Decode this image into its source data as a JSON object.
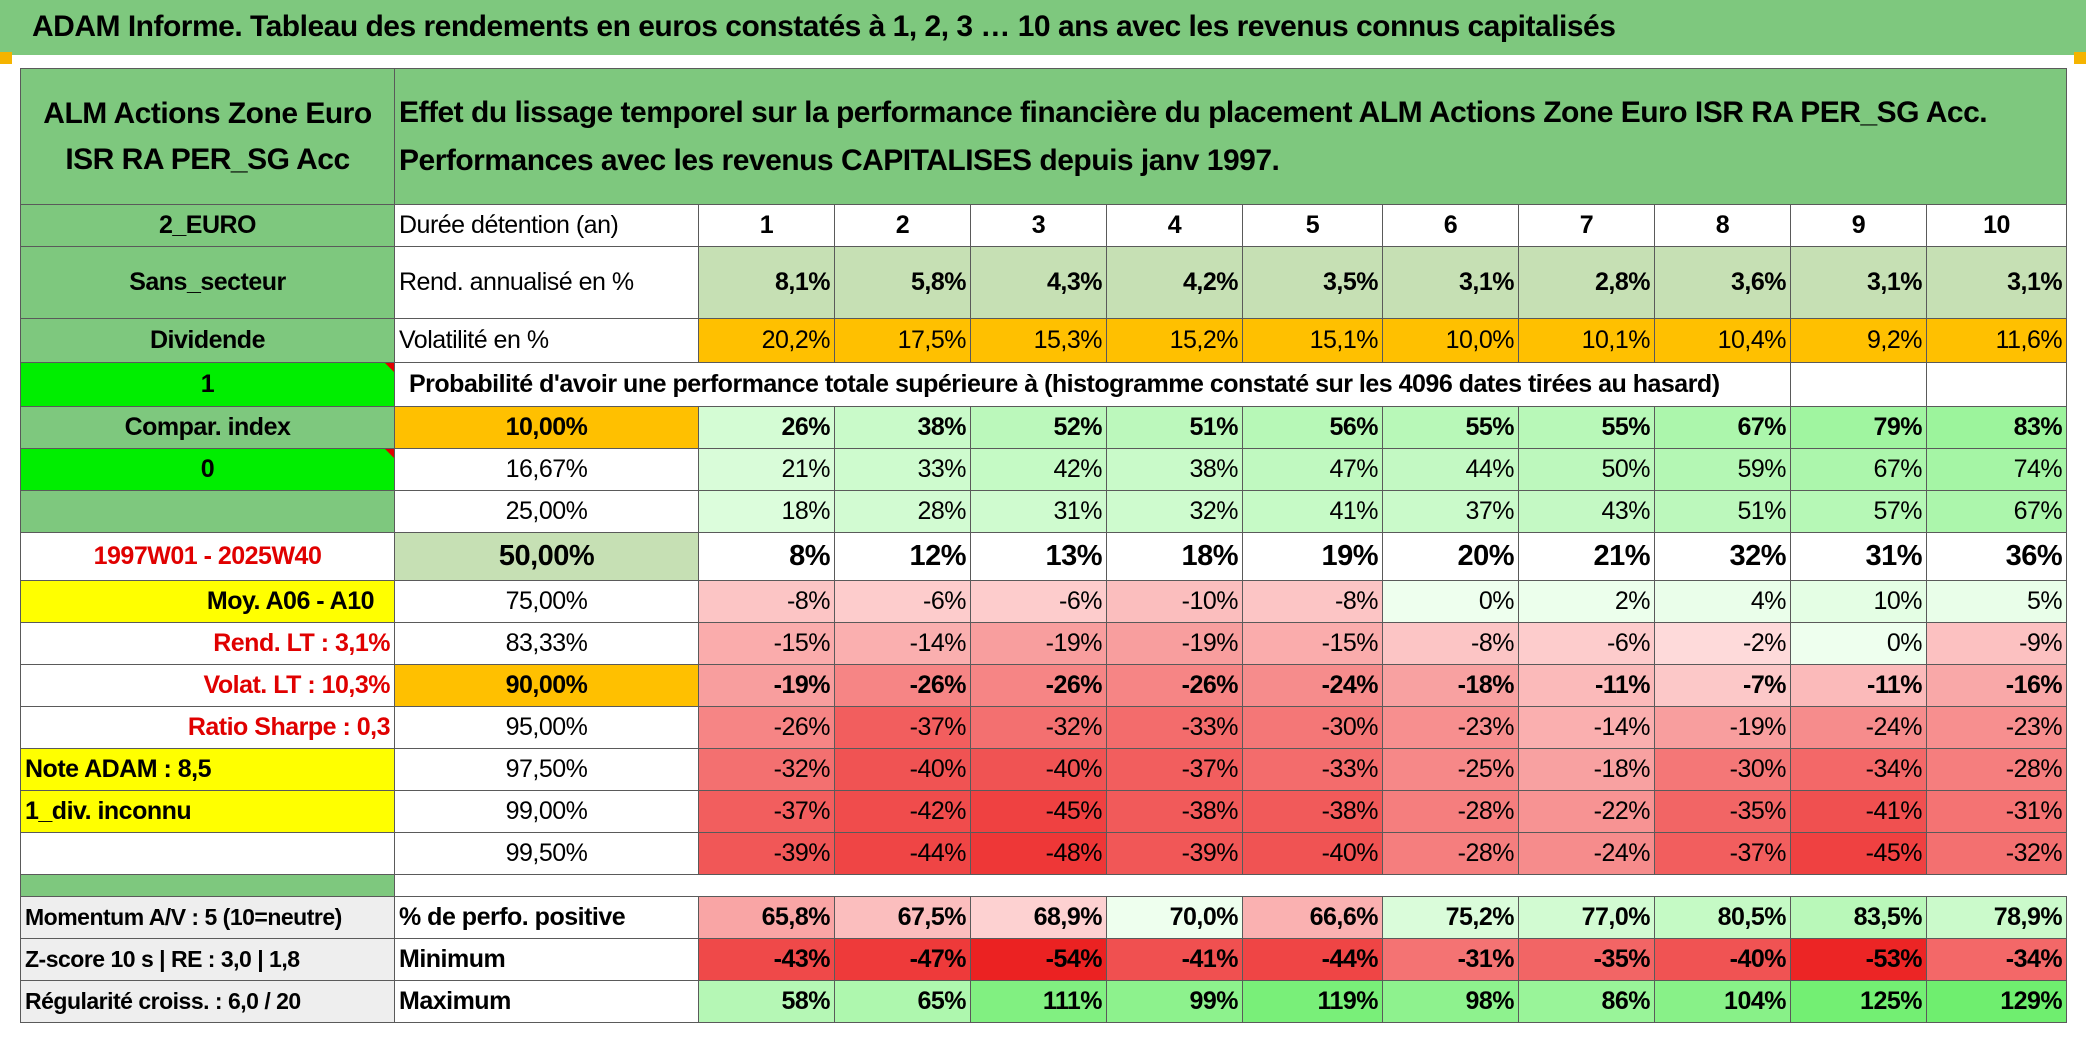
{
  "title": "ADAM Informe. Tableau des rendements en euros constatés à 1, 2, 3 … 10 ans avec les revenus connus capitalisés",
  "fund_name": "ALM Actions Zone Euro ISR RA PER_SG Acc",
  "header_text": "Effet du lissage temporel sur la performance financière du placement ALM Actions Zone Euro ISR RA PER_SG Acc. Performances avec les revenus CAPITALISES depuis janv 1997.",
  "left_panel": {
    "currency": "2_EURO",
    "sector": "Sans_secteur",
    "dividend": "Dividende",
    "value_one": "1",
    "compar_index": "Compar. index",
    "value_zero": "0",
    "period": "1997W01 - 2025W40",
    "moy": "Moy. A06 - A10",
    "rend_lt": "Rend. LT :   3,1%",
    "volat_lt": "Volat. LT :   10,3%",
    "sharpe": "Ratio Sharpe :    0,3",
    "note": "Note ADAM : 8,5",
    "div": "1_div. inconnu",
    "momentum": "Momentum A/V : 5 (10=neutre)",
    "zscore": "Z-score 10 s | RE : 3,0 | 1,8",
    "regularite": "Régularité croiss. : 6,0 / 20"
  },
  "duration_label": "Durée détention (an)",
  "durations": [
    "1",
    "2",
    "3",
    "4",
    "5",
    "6",
    "7",
    "8",
    "9",
    "10"
  ],
  "rend_label": "Rend. annualisé en %",
  "rend": [
    "8,1%",
    "5,8%",
    "4,3%",
    "4,2%",
    "3,5%",
    "3,1%",
    "2,8%",
    "3,6%",
    "3,1%",
    "3,1%"
  ],
  "vol_label": "Volatilité en %",
  "vol": [
    "20,2%",
    "17,5%",
    "15,3%",
    "15,2%",
    "15,1%",
    "10,0%",
    "10,1%",
    "10,4%",
    "9,2%",
    "11,6%"
  ],
  "prob_text": "Probabilité d'avoir une performance totale supérieure à (histogramme constaté sur les 4096 dates tirées au hasard)",
  "prob_rows": [
    {
      "label": "10,00%",
      "values": [
        "26%",
        "38%",
        "52%",
        "51%",
        "56%",
        "55%",
        "55%",
        "67%",
        "79%",
        "83%"
      ]
    },
    {
      "label": "16,67%",
      "values": [
        "21%",
        "33%",
        "42%",
        "38%",
        "47%",
        "44%",
        "50%",
        "59%",
        "67%",
        "74%"
      ]
    },
    {
      "label": "25,00%",
      "values": [
        "18%",
        "28%",
        "31%",
        "32%",
        "41%",
        "37%",
        "43%",
        "51%",
        "57%",
        "67%"
      ]
    },
    {
      "label": "50,00%",
      "values": [
        "8%",
        "12%",
        "13%",
        "18%",
        "19%",
        "20%",
        "21%",
        "32%",
        "31%",
        "36%"
      ]
    },
    {
      "label": "75,00%",
      "values": [
        "-8%",
        "-6%",
        "-6%",
        "-10%",
        "-8%",
        "0%",
        "2%",
        "4%",
        "10%",
        "5%"
      ]
    },
    {
      "label": "83,33%",
      "values": [
        "-15%",
        "-14%",
        "-19%",
        "-19%",
        "-15%",
        "-8%",
        "-6%",
        "-2%",
        "0%",
        "-9%"
      ]
    },
    {
      "label": "90,00%",
      "values": [
        "-19%",
        "-26%",
        "-26%",
        "-26%",
        "-24%",
        "-18%",
        "-11%",
        "-7%",
        "-11%",
        "-16%"
      ]
    },
    {
      "label": "95,00%",
      "values": [
        "-26%",
        "-37%",
        "-32%",
        "-33%",
        "-30%",
        "-23%",
        "-14%",
        "-19%",
        "-24%",
        "-23%"
      ]
    },
    {
      "label": "97,50%",
      "values": [
        "-32%",
        "-40%",
        "-40%",
        "-37%",
        "-33%",
        "-25%",
        "-18%",
        "-30%",
        "-34%",
        "-28%"
      ]
    },
    {
      "label": "99,00%",
      "values": [
        "-37%",
        "-42%",
        "-45%",
        "-38%",
        "-38%",
        "-28%",
        "-22%",
        "-35%",
        "-41%",
        "-31%"
      ]
    },
    {
      "label": "99,50%",
      "values": [
        "-39%",
        "-44%",
        "-48%",
        "-39%",
        "-40%",
        "-28%",
        "-24%",
        "-37%",
        "-45%",
        "-32%"
      ]
    }
  ],
  "pos_label": "% de perfo. positive",
  "pos": [
    "65,8%",
    "67,5%",
    "68,9%",
    "70,0%",
    "66,6%",
    "75,2%",
    "77,0%",
    "80,5%",
    "83,5%",
    "78,9%"
  ],
  "min_label": "Minimum",
  "min": [
    "-43%",
    "-47%",
    "-54%",
    "-41%",
    "-44%",
    "-31%",
    "-35%",
    "-40%",
    "-53%",
    "-34%"
  ],
  "max_label": "Maximum",
  "max": [
    "58%",
    "65%",
    "111%",
    "99%",
    "119%",
    "98%",
    "86%",
    "104%",
    "125%",
    "129%"
  ]
}
